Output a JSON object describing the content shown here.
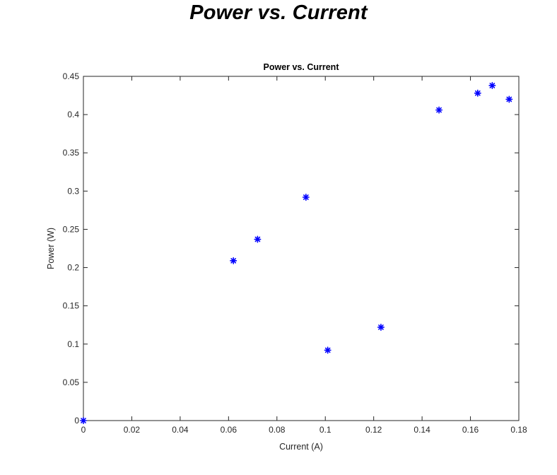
{
  "page_title": "Power vs. Current",
  "chart_data": {
    "type": "scatter",
    "title": "Power vs. Current",
    "xlabel": "Current (A)",
    "ylabel": "Power (W)",
    "xlim": [
      0,
      0.18
    ],
    "ylim": [
      0,
      0.45
    ],
    "xticks": [
      0,
      0.02,
      0.04,
      0.06,
      0.08,
      0.1,
      0.12,
      0.14,
      0.16,
      0.18
    ],
    "xtick_labels": [
      "0",
      "0.02",
      "0.04",
      "0.06",
      "0.08",
      "0.1",
      "0.12",
      "0.14",
      "0.16",
      "0.18"
    ],
    "yticks": [
      0,
      0.05,
      0.1,
      0.15,
      0.2,
      0.25,
      0.3,
      0.35,
      0.4,
      0.45
    ],
    "ytick_labels": [
      "0",
      "0.05",
      "0.1",
      "0.15",
      "0.2",
      "0.25",
      "0.3",
      "0.35",
      "0.4",
      "0.45"
    ],
    "grid": false,
    "marker": "asterisk",
    "marker_color": "#0000ff",
    "series": [
      {
        "x": [
          0,
          0.062,
          0.072,
          0.092,
          0.101,
          0.123,
          0.147,
          0.163,
          0.169,
          0.176
        ],
        "y": [
          0,
          0.209,
          0.237,
          0.292,
          0.092,
          0.122,
          0.406,
          0.428,
          0.438,
          0.42
        ]
      }
    ]
  }
}
